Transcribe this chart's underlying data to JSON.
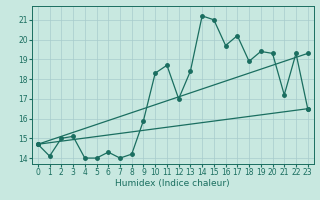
{
  "title": "",
  "xlabel": "Humidex (Indice chaleur)",
  "ylabel": "",
  "background_color": "#c8e8e0",
  "grid_color": "#a8cccc",
  "line_color": "#1a6e60",
  "xlim": [
    -0.5,
    23.5
  ],
  "ylim": [
    13.7,
    21.7
  ],
  "yticks": [
    14,
    15,
    16,
    17,
    18,
    19,
    20,
    21
  ],
  "xticks": [
    0,
    1,
    2,
    3,
    4,
    5,
    6,
    7,
    8,
    9,
    10,
    11,
    12,
    13,
    14,
    15,
    16,
    17,
    18,
    19,
    20,
    21,
    22,
    23
  ],
  "line1_x": [
    0,
    1,
    2,
    3,
    4,
    5,
    6,
    7,
    8,
    9,
    10,
    11,
    12,
    13,
    14,
    15,
    16,
    17,
    18,
    19,
    20,
    21,
    22,
    23
  ],
  "line1_y": [
    14.7,
    14.1,
    15.0,
    15.1,
    14.0,
    14.0,
    14.3,
    14.0,
    14.2,
    15.9,
    18.3,
    18.7,
    17.0,
    18.4,
    21.2,
    21.0,
    19.7,
    20.2,
    18.9,
    19.4,
    19.3,
    17.2,
    19.3,
    16.5
  ],
  "line2_x": [
    0,
    23
  ],
  "line2_y": [
    14.7,
    16.5
  ],
  "line3_x": [
    0,
    23
  ],
  "line3_y": [
    14.7,
    19.3
  ],
  "marker_size": 2.5,
  "line_width": 0.9,
  "tick_fontsize": 5.5,
  "xlabel_fontsize": 6.5
}
